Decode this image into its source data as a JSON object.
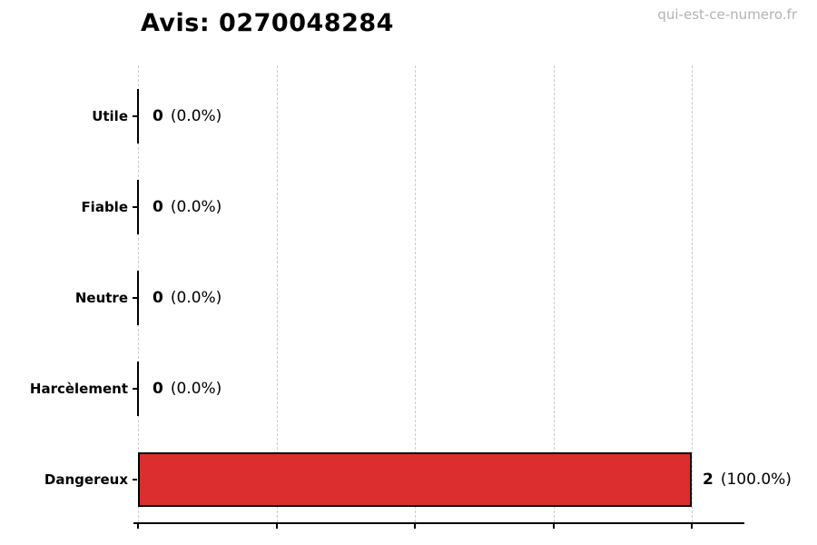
{
  "watermark": "qui-est-ce-numero.fr",
  "chart_data": {
    "type": "bar",
    "orientation": "horizontal",
    "title": "Avis: 0270048284",
    "categories": [
      "Utile",
      "Fiable",
      "Neutre",
      "Harcèlement",
      "Dangereux"
    ],
    "values": [
      0,
      0,
      0,
      0,
      2
    ],
    "percentages": [
      0.0,
      0.0,
      0.0,
      0.0,
      100.0
    ],
    "value_labels": [
      {
        "count": "0",
        "pct": "(0.0%)"
      },
      {
        "count": "0",
        "pct": "(0.0%)"
      },
      {
        "count": "0",
        "pct": "(0.0%)"
      },
      {
        "count": "0",
        "pct": "(0.0%)"
      },
      {
        "count": "2",
        "pct": "(100.0%)"
      }
    ],
    "xlim": [
      0,
      2.2
    ],
    "xticks": [
      0,
      0.5,
      1,
      1.5,
      2
    ],
    "xtick_labels": [],
    "grid": {
      "axis": "x",
      "style": "dashed",
      "color": "#cccccc"
    },
    "bar_color": "#dc2e2e",
    "bar_edge_color": "#000000",
    "legend": null
  }
}
